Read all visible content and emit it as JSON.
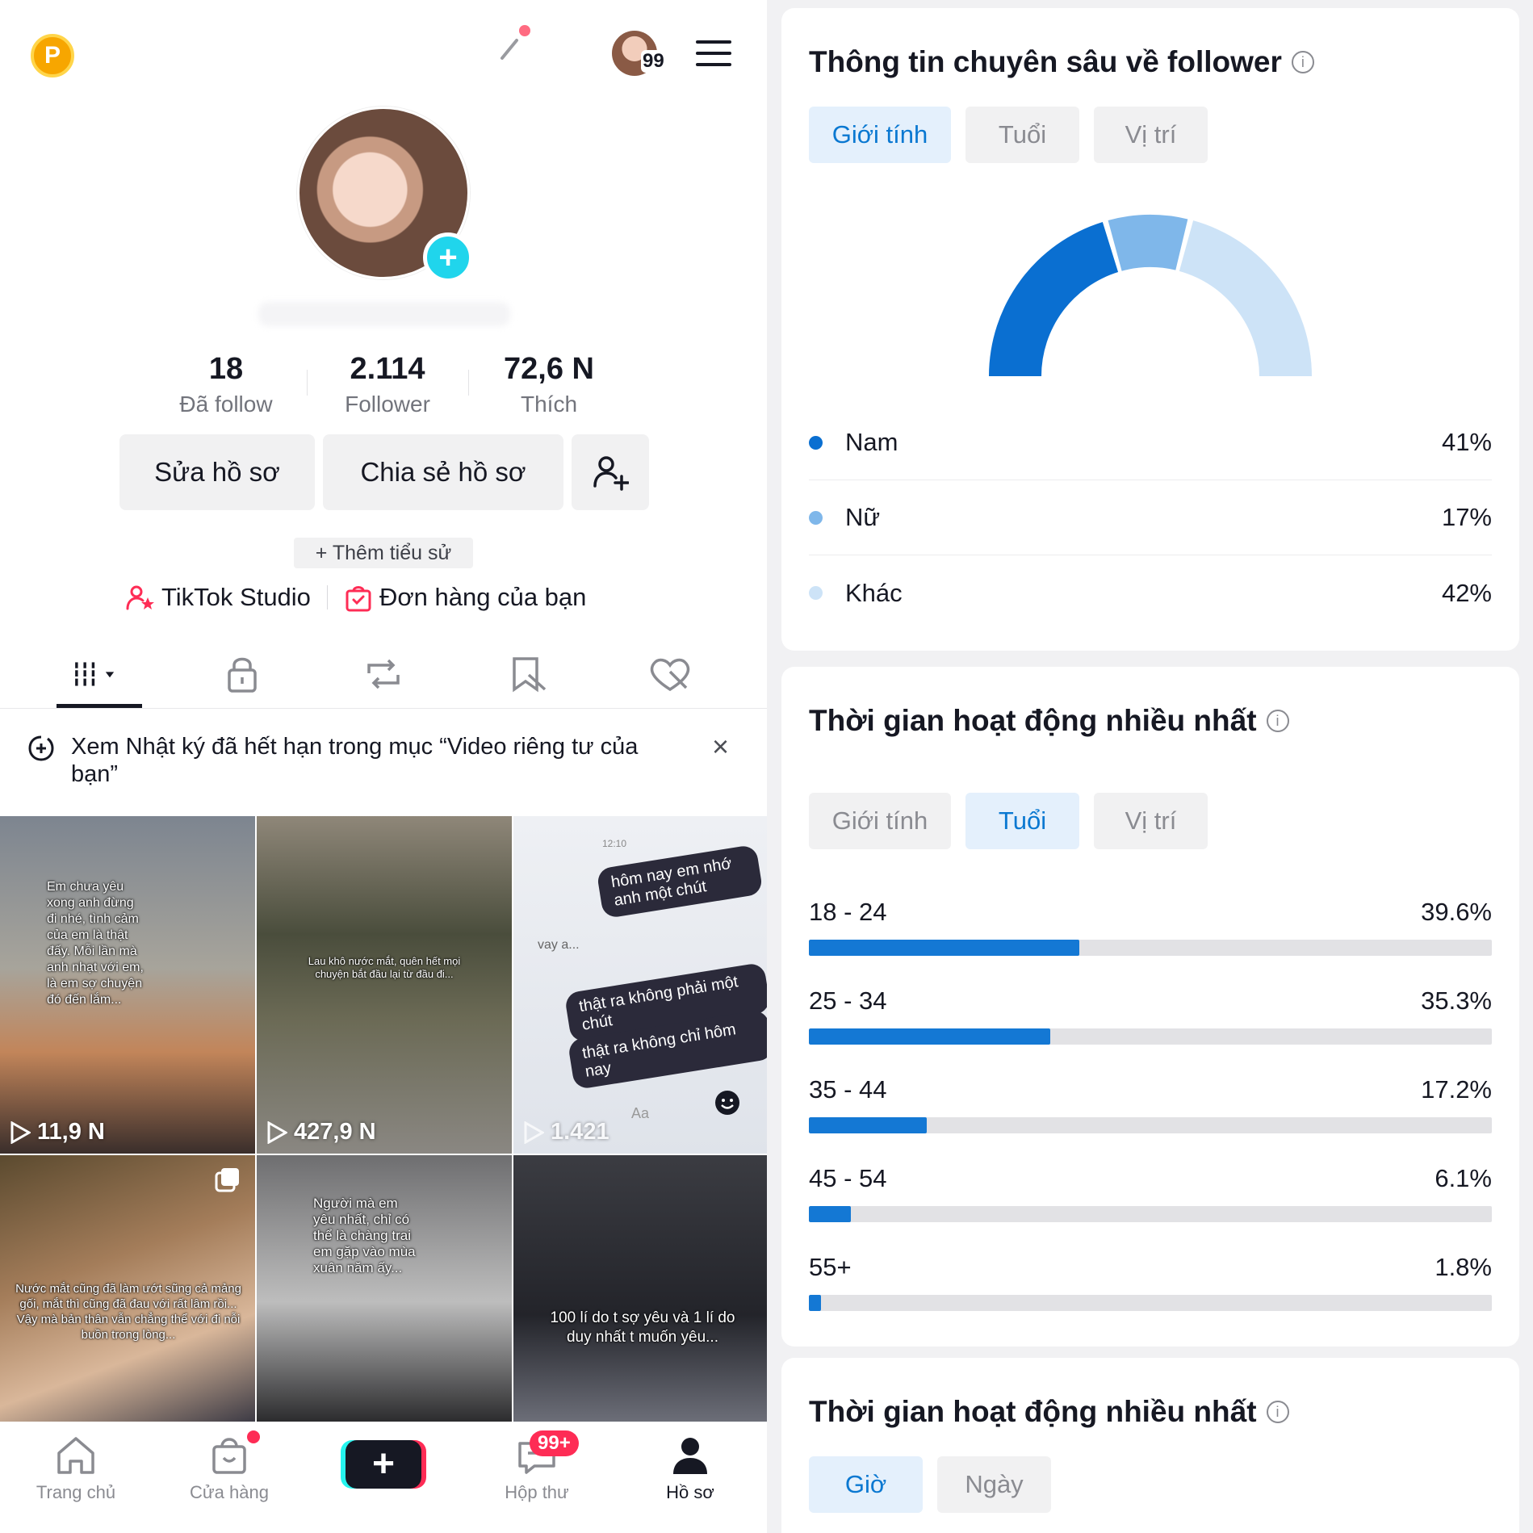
{
  "profile": {
    "coin_letter": "P",
    "mini_badge": "99",
    "stats": [
      {
        "value": "18",
        "label": "Đã follow"
      },
      {
        "value": "2.114",
        "label": "Follower"
      },
      {
        "value": "72,6 N",
        "label": "Thích"
      }
    ],
    "edit_label": "Sửa hồ sơ",
    "share_label": "Chia sẻ hồ sơ",
    "bio_label": "+ Thêm tiểu sử",
    "studio_label": "TikTok Studio",
    "orders_label": "Đơn hàng của bạn",
    "notice": "Xem Nhật ký đã hết hạn trong mục “Video riêng tư của bạn”",
    "notice_close": "×"
  },
  "videos": [
    {
      "views": "11,9 N",
      "caption": "Em chưa yêu xong anh đừng đi nhé, tình cảm của em là thật đấy. Mỗi lần mà anh nhạt với em, là em sợ chuyện đó đến lắm..."
    },
    {
      "views": "427,9 N",
      "caption": "Lau khô nước mắt, quên hết mọi chuyện bắt đầu lại từ đầu đi..."
    },
    {
      "views": "1.421",
      "caption": ""
    },
    {
      "views": "",
      "caption": "Nước mắt cũng đã làm ướt sũng cả mảng gối, mắt thì cũng đã đau với rất lâm rồi... Vậy mà bản thân vẫn chẳng thể với đi nỗi buồn trong lòng..."
    },
    {
      "views": "",
      "caption": "Người mà em yêu nhất, chỉ có thể là chàng trai em gặp vào mùa xuân năm ấy..."
    },
    {
      "views": "",
      "caption": "100 lí do t sợ yêu và 1 lí do duy nhất t muốn yêu..."
    }
  ],
  "chat": {
    "time": "12:10",
    "bubble1": "hôm nay em nhớ anh một chút",
    "reply": "vay a...",
    "bubble2": "thật ra không phải một chút",
    "bubble3": "thật ra không chỉ hôm nay",
    "input_placeholder": "Aa"
  },
  "nav": [
    {
      "label": "Trang chủ"
    },
    {
      "label": "Cửa hàng"
    },
    {
      "label": ""
    },
    {
      "label": "Hộp thư",
      "badge": "99+"
    },
    {
      "label": "Hồ sơ"
    }
  ],
  "insights": {
    "title": "Thông tin chuyên sâu về follower",
    "chips": [
      "Giới tính",
      "Tuổi",
      "Vị trí"
    ],
    "selected_chip": 0,
    "gender": [
      {
        "name": "Nam",
        "value": 41,
        "label": "41%",
        "color": "#0a6fd1"
      },
      {
        "name": "Nữ",
        "value": 17,
        "label": "17%",
        "color": "#7fb7ea"
      },
      {
        "name": "Khác",
        "value": 42,
        "label": "42%",
        "color": "#cde3f7"
      }
    ]
  },
  "activity": {
    "title": "Thời gian hoạt động nhiều nhất",
    "chips": [
      "Giới tính",
      "Tuổi",
      "Vị trí"
    ],
    "selected_chip": 1,
    "ages": [
      {
        "range": "18 - 24",
        "value": 39.6,
        "label": "39.6%"
      },
      {
        "range": "25 - 34",
        "value": 35.3,
        "label": "35.3%"
      },
      {
        "range": "35 - 44",
        "value": 17.2,
        "label": "17.2%"
      },
      {
        "range": "45 - 54",
        "value": 6.1,
        "label": "6.1%"
      },
      {
        "range": "55+",
        "value": 1.8,
        "label": "1.8%"
      }
    ]
  },
  "activity2": {
    "title": "Thời gian hoạt động nhiều nhất",
    "chips": [
      "Giờ",
      "Ngày"
    ],
    "selected_chip": 0
  },
  "chart_data": [
    {
      "type": "pie",
      "categories": [
        "Nam",
        "Nữ",
        "Khác"
      ],
      "values": [
        41,
        17,
        42
      ],
      "title": "Thông tin chuyên sâu về follower"
    },
    {
      "type": "bar",
      "categories": [
        "18 - 24",
        "25 - 34",
        "35 - 44",
        "45 - 54",
        "55+"
      ],
      "values": [
        39.6,
        35.3,
        17.2,
        6.1,
        1.8
      ],
      "title": "Thời gian hoạt động nhiều nhất",
      "xlabel": "",
      "ylabel": "",
      "ylim": [
        0,
        100
      ]
    }
  ]
}
